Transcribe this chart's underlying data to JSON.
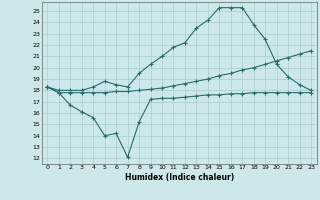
{
  "xlabel": "Humidex (Indice chaleur)",
  "background_color": "#cce8ea",
  "grid_color": "#aacccc",
  "line_color": "#2a6b6b",
  "xlim": [
    -0.5,
    23.5
  ],
  "ylim": [
    11.5,
    25.8
  ],
  "yticks": [
    12,
    13,
    14,
    15,
    16,
    17,
    18,
    19,
    20,
    21,
    22,
    23,
    24,
    25
  ],
  "xticks": [
    0,
    1,
    2,
    3,
    4,
    5,
    6,
    7,
    8,
    9,
    10,
    11,
    12,
    13,
    14,
    15,
    16,
    17,
    18,
    19,
    20,
    21,
    22,
    23
  ],
  "line1_x": [
    0,
    1,
    2,
    3,
    4,
    5,
    6,
    7,
    8,
    9,
    10,
    11,
    12,
    13,
    14,
    15,
    16,
    17,
    18,
    19,
    20,
    21,
    22,
    23
  ],
  "line1_y": [
    18.3,
    17.8,
    16.7,
    16.1,
    15.6,
    14.0,
    14.2,
    12.1,
    15.2,
    17.2,
    17.3,
    17.3,
    17.4,
    17.5,
    17.6,
    17.6,
    17.7,
    17.7,
    17.8,
    17.8,
    17.8,
    17.8,
    17.8,
    17.8
  ],
  "line2_x": [
    0,
    1,
    2,
    3,
    4,
    5,
    6,
    7,
    8,
    9,
    10,
    11,
    12,
    13,
    14,
    15,
    16,
    17,
    18,
    19,
    20,
    21,
    22,
    23
  ],
  "line2_y": [
    18.3,
    17.8,
    17.8,
    17.8,
    17.8,
    17.8,
    17.9,
    17.9,
    18.0,
    18.1,
    18.2,
    18.4,
    18.6,
    18.8,
    19.0,
    19.3,
    19.5,
    19.8,
    20.0,
    20.3,
    20.6,
    20.9,
    21.2,
    21.5
  ],
  "line3_x": [
    0,
    1,
    2,
    3,
    4,
    5,
    6,
    7,
    8,
    9,
    10,
    11,
    12,
    13,
    14,
    15,
    16,
    17,
    18,
    19,
    20,
    21,
    22,
    23
  ],
  "line3_y": [
    18.3,
    18.0,
    18.0,
    18.0,
    18.3,
    18.8,
    18.5,
    18.3,
    19.5,
    20.3,
    21.0,
    21.8,
    22.2,
    23.5,
    24.2,
    25.3,
    25.3,
    25.3,
    23.8,
    22.5,
    20.3,
    19.2,
    18.5,
    18.0
  ]
}
